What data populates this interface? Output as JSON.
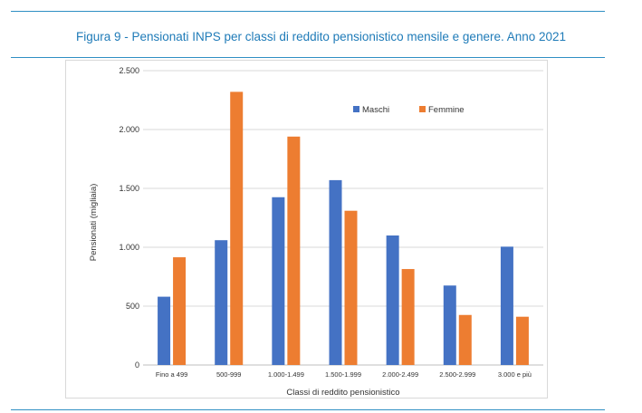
{
  "figure": {
    "title": "Figura 9 - Pensionati INPS per classi di reddito pensionistico mensile e genere. Anno 2021"
  },
  "colors": {
    "rule": "#2f8fc4",
    "title": "#1f7bb8",
    "maschi": "#4472c4",
    "femmine": "#ed7d31",
    "grid": "#d9d9d9"
  },
  "chart_data": {
    "type": "bar",
    "title": "",
    "xlabel": "Classi di reddito pensionistico",
    "ylabel": "Pensionati (migliaia)",
    "ylim": [
      0,
      2500
    ],
    "yticks": [
      0,
      500,
      1000,
      1500,
      2000,
      2500
    ],
    "ytick_labels": [
      "0",
      "500",
      "1.000",
      "1.500",
      "2.000",
      "2.500"
    ],
    "grid": true,
    "legend_position": "top-right",
    "categories": [
      "Fino a 499",
      "500-999",
      "1.000-1.499",
      "1.500-1.999",
      "2.000-2.499",
      "2.500-2.999",
      "3.000 e più"
    ],
    "series": [
      {
        "name": "Maschi",
        "color": "#4472c4",
        "values": [
          580,
          1060,
          1425,
          1570,
          1100,
          675,
          1005
        ]
      },
      {
        "name": "Femmine",
        "color": "#ed7d31",
        "values": [
          915,
          2320,
          1940,
          1310,
          815,
          425,
          410
        ]
      }
    ]
  }
}
